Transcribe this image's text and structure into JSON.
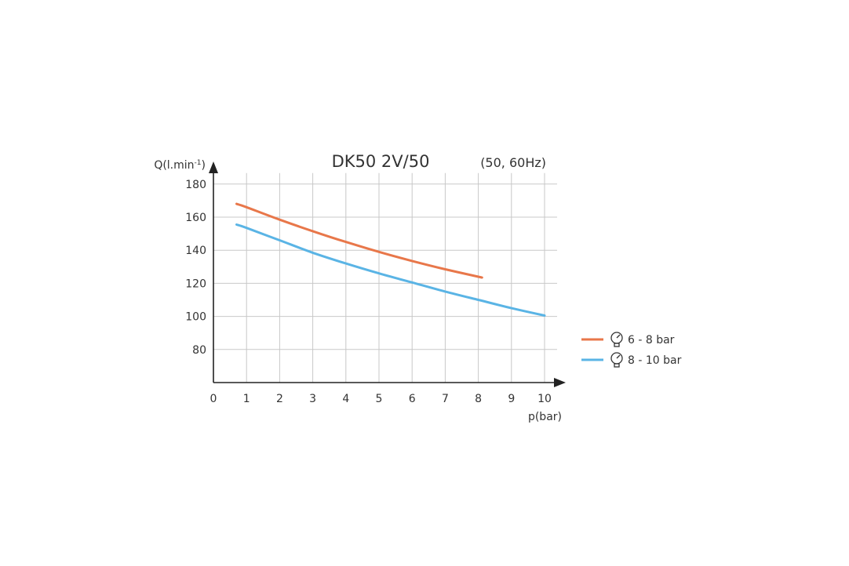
{
  "chart_data": {
    "type": "line",
    "title": "DK50 2V/50",
    "subtitle": "(50, 60Hz)",
    "xlabel": "p(bar)",
    "ylabel_main": "Q(l.min",
    "ylabel_sup": "-1",
    "ylabel_end": ")",
    "xlim": [
      0,
      10
    ],
    "ylim": [
      60,
      180
    ],
    "x_ticks": [
      "0",
      "1",
      "2",
      "3",
      "4",
      "5",
      "6",
      "7",
      "8",
      "9",
      "10"
    ],
    "y_ticks": [
      "80",
      "100",
      "120",
      "140",
      "160",
      "180"
    ],
    "grid": true,
    "legend_position": "right",
    "series": [
      {
        "name": "6 - 8 bar",
        "color": "#e8774a",
        "icon": "pressure-gauge-icon",
        "x": [
          0.7,
          1,
          2,
          3,
          4,
          5,
          6,
          7,
          8,
          8.1
        ],
        "y": [
          168,
          166,
          158.5,
          151.5,
          145,
          139,
          133.5,
          128.5,
          124,
          123.5
        ]
      },
      {
        "name": "8 - 10 bar",
        "color": "#5ab4e5",
        "icon": "pressure-gauge-icon",
        "x": [
          0.7,
          1,
          2,
          3,
          4,
          5,
          6,
          7,
          8,
          9,
          10
        ],
        "y": [
          155.5,
          153.5,
          146,
          138.5,
          132,
          126,
          120.5,
          115,
          110,
          105,
          100.5
        ]
      }
    ]
  }
}
